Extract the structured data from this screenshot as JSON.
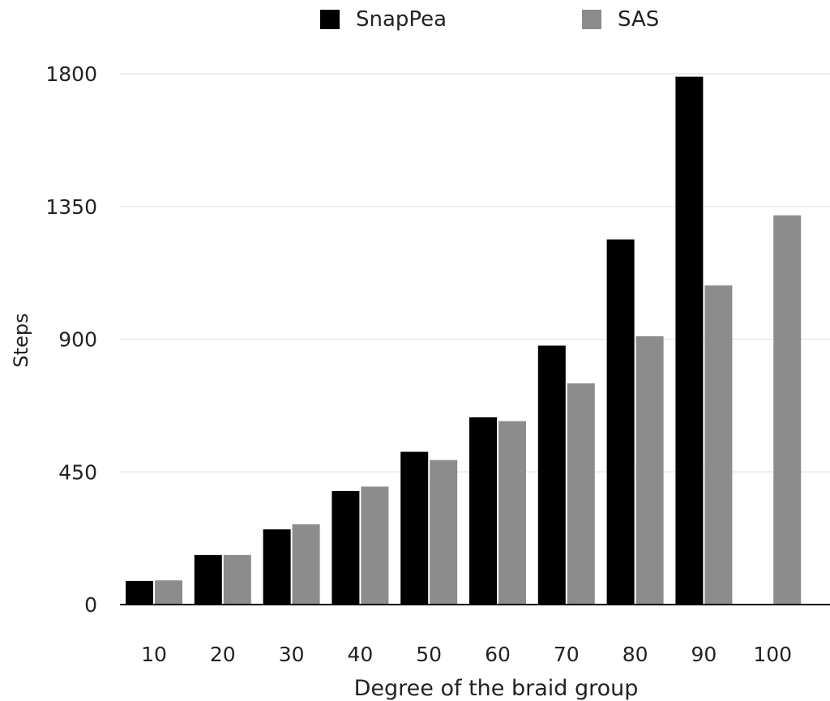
{
  "chart_data": {
    "type": "bar",
    "title": "",
    "xlabel": "Degree of the braid group",
    "ylabel": "Steps",
    "categories": [
      "10",
      "20",
      "30",
      "40",
      "50",
      "60",
      "70",
      "80",
      "90",
      "100"
    ],
    "series": [
      {
        "name": "SnapPea",
        "color": "#000000",
        "values": [
          80,
          168,
          255,
          385,
          518,
          635,
          878,
          1238,
          1790,
          null
        ]
      },
      {
        "name": "SAS",
        "color": "#8c8c8c",
        "values": [
          82,
          168,
          272,
          400,
          490,
          622,
          750,
          910,
          1082,
          1320
        ]
      }
    ],
    "yticks": [
      0,
      450,
      900,
      1350,
      1800
    ],
    "ylim": [
      0,
      1800
    ],
    "grid": true,
    "legend_position": "top-center"
  }
}
